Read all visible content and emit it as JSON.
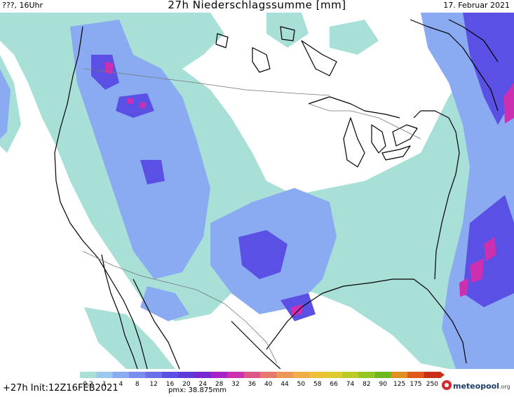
{
  "header": {
    "left": "???, 16Uhr",
    "title": "27h Niederschlagssumme [mm]",
    "right": "17. Februar 2021"
  },
  "footer": {
    "run": "+27h  Init:12Z16FEB2021",
    "pmx": "pmx: 38.875mm",
    "logo": "meteopool",
    "logo_suffix": ".org"
  },
  "legend": {
    "labels": [
      "0.2",
      "1",
      "4",
      "8",
      "12",
      "16",
      "20",
      "24",
      "28",
      "32",
      "36",
      "40",
      "44",
      "50",
      "58",
      "66",
      "74",
      "82",
      "90",
      "125",
      "175",
      "250"
    ],
    "colors": [
      "#a8e0d8",
      "#9cc8ee",
      "#8aaaf2",
      "#7a8cf0",
      "#6a70ea",
      "#5a50e4",
      "#5e3ad8",
      "#7a28d0",
      "#a424c8",
      "#cc30b0",
      "#de5688",
      "#e6786c",
      "#ec9658",
      "#f0ae48",
      "#eec038",
      "#dcca2e",
      "#bcca26",
      "#94c622",
      "#6cb81e",
      "#e09020",
      "#e05a1a",
      "#c83018"
    ]
  },
  "map": {
    "region": "North America",
    "colors": {
      "land": "#ffffff",
      "light_precip": "#a8e0d8",
      "moderate_precip": "#8aaaf2",
      "heavy_precip": "#5a50e4",
      "intense_precip": "#cc30b0",
      "coast": "#000000",
      "border": "#777777"
    }
  }
}
